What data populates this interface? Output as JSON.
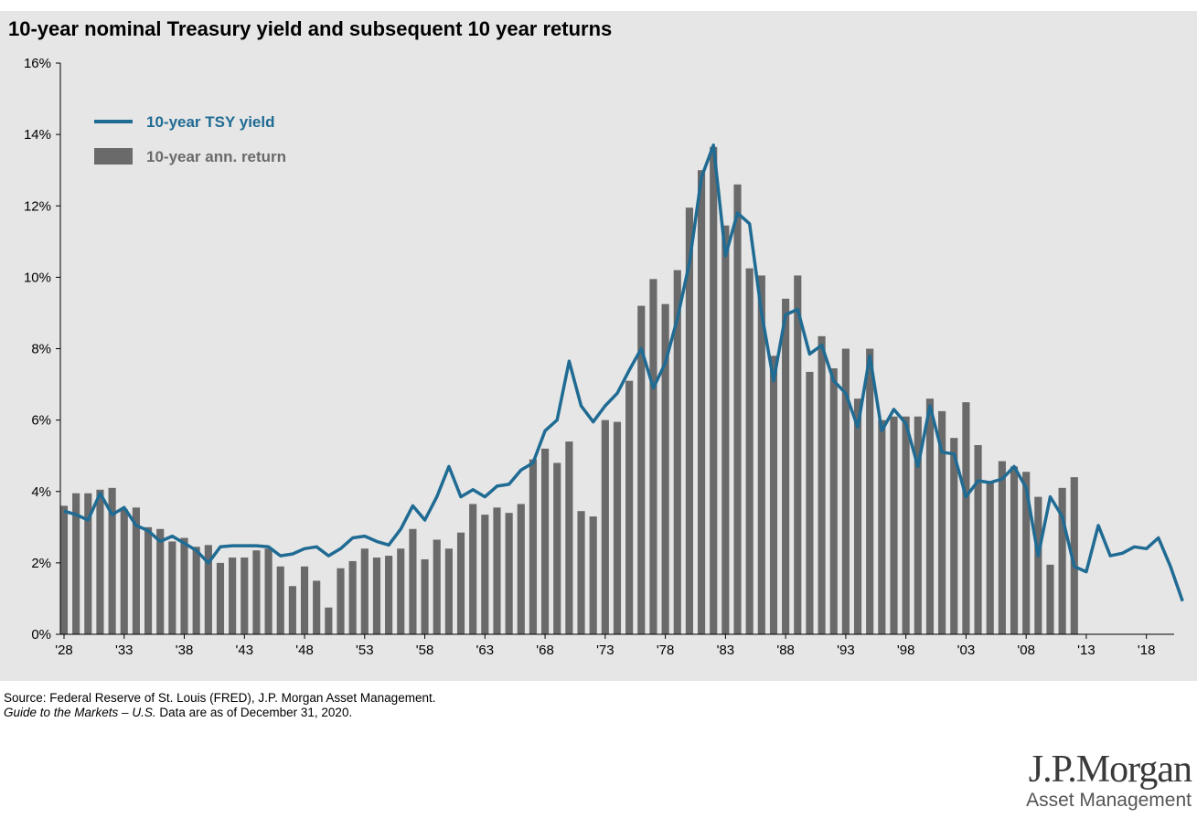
{
  "chart_data": {
    "type": "bar+line",
    "title": "10-year nominal Treasury yield and subsequent 10 year returns",
    "ylim": [
      0,
      16
    ],
    "yticks": [
      "0%",
      "2%",
      "4%",
      "6%",
      "8%",
      "10%",
      "12%",
      "14%",
      "16%"
    ],
    "x_start": 1928,
    "x_end": 2020,
    "xticks": [
      {
        "year": 1928,
        "label": "'28"
      },
      {
        "year": 1933,
        "label": "'33"
      },
      {
        "year": 1938,
        "label": "'38"
      },
      {
        "year": 1943,
        "label": "'43"
      },
      {
        "year": 1948,
        "label": "'48"
      },
      {
        "year": 1953,
        "label": "'53"
      },
      {
        "year": 1958,
        "label": "'58"
      },
      {
        "year": 1963,
        "label": "'63"
      },
      {
        "year": 1968,
        "label": "'68"
      },
      {
        "year": 1973,
        "label": "'73"
      },
      {
        "year": 1978,
        "label": "'78"
      },
      {
        "year": 1983,
        "label": "'83"
      },
      {
        "year": 1988,
        "label": "'88"
      },
      {
        "year": 1993,
        "label": "'93"
      },
      {
        "year": 1998,
        "label": "'98"
      },
      {
        "year": 2003,
        "label": "'03"
      },
      {
        "year": 2008,
        "label": "'08"
      },
      {
        "year": 2013,
        "label": "'13"
      },
      {
        "year": 2018,
        "label": "'18"
      }
    ],
    "legend_position": "top-left",
    "series": [
      {
        "name": "10-year TSY yield",
        "kind": "line",
        "color": "#1f6b93",
        "start_year": 1928,
        "values": [
          3.45,
          3.35,
          3.2,
          3.95,
          3.35,
          3.55,
          3.05,
          2.9,
          2.6,
          2.75,
          2.55,
          2.35,
          2.0,
          2.45,
          2.48,
          2.48,
          2.48,
          2.45,
          2.2,
          2.25,
          2.4,
          2.45,
          2.2,
          2.4,
          2.7,
          2.75,
          2.6,
          2.5,
          2.95,
          3.6,
          3.2,
          3.85,
          4.7,
          3.85,
          4.05,
          3.85,
          4.15,
          4.2,
          4.6,
          4.8,
          5.7,
          6.0,
          7.65,
          6.4,
          5.95,
          6.4,
          6.75,
          7.4,
          8.0,
          6.9,
          7.6,
          8.85,
          10.4,
          12.8,
          13.7,
          10.6,
          11.8,
          11.5,
          9.0,
          7.1,
          8.95,
          9.1,
          7.85,
          8.1,
          7.1,
          6.75,
          5.8,
          7.8,
          5.7,
          6.3,
          5.9,
          4.7,
          6.4,
          5.1,
          5.05,
          3.85,
          4.3,
          4.25,
          4.35,
          4.7,
          4.1,
          2.2,
          3.85,
          3.3,
          1.9,
          1.75,
          3.05,
          2.2,
          2.27,
          2.45,
          2.4,
          2.7,
          1.9,
          0.93
        ]
      },
      {
        "name": "10-year ann. return",
        "kind": "bar",
        "color": "#6a6a6a",
        "start_year": 1928,
        "values": [
          3.6,
          3.95,
          3.95,
          4.05,
          4.1,
          3.5,
          3.55,
          3.0,
          2.95,
          2.6,
          2.7,
          2.45,
          2.5,
          2.0,
          2.15,
          2.15,
          2.35,
          2.4,
          1.9,
          1.35,
          1.9,
          1.5,
          0.75,
          1.85,
          2.05,
          2.4,
          2.15,
          2.2,
          2.4,
          2.95,
          2.1,
          2.65,
          2.4,
          2.85,
          3.65,
          3.35,
          3.55,
          3.4,
          3.65,
          4.9,
          5.2,
          4.8,
          5.4,
          3.45,
          3.3,
          6.0,
          5.95,
          7.1,
          9.2,
          9.95,
          9.25,
          10.2,
          11.95,
          13.0,
          13.65,
          11.45,
          12.6,
          10.25,
          10.05,
          7.8,
          9.4,
          10.05,
          7.35,
          8.35,
          7.45,
          8.0,
          6.6,
          8.0,
          6.0,
          6.1,
          6.1,
          6.1,
          6.6,
          6.25,
          5.5,
          6.5,
          5.3,
          4.25,
          4.85,
          4.7,
          4.55,
          3.85,
          1.95,
          4.1,
          4.4
        ]
      }
    ]
  },
  "source_line": "Source: Federal Reserve of St. Louis (FRED), J.P. Morgan Asset Management.",
  "guide_title": "Guide to the Markets – U.S.",
  "data_note": " Data are as of December 31, 2020.",
  "logo": {
    "line1": "J.P.Morgan",
    "line2": "Asset Management"
  }
}
